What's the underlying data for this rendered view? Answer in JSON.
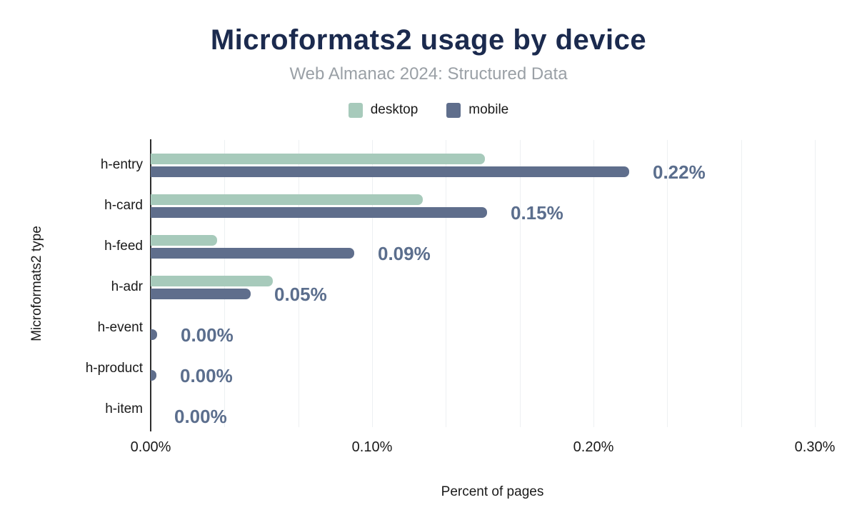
{
  "chart_data": {
    "type": "bar",
    "orientation": "horizontal",
    "title": "Microformats2 usage by device",
    "subtitle": "Web Almanac 2024: Structured Data",
    "xlabel": "Percent of pages",
    "ylabel": "Microformats2 type",
    "legend_position": "top-center",
    "grid": true,
    "categories": [
      "h-entry",
      "h-card",
      "h-feed",
      "h-adr",
      "h-event",
      "h-product",
      "h-item"
    ],
    "series": [
      {
        "name": "desktop",
        "color": "#a7cabb",
        "values": [
          0.151,
          0.123,
          0.03,
          0.055,
          0.0,
          0.0,
          0.0
        ]
      },
      {
        "name": "mobile",
        "color": "#5f6e8c",
        "values": [
          0.216,
          0.152,
          0.092,
          0.045,
          0.003,
          0.0025,
          0.0
        ]
      }
    ],
    "value_labels": [
      "0.22%",
      "0.15%",
      "0.09%",
      "0.05%",
      "0.00%",
      "0.00%",
      "0.00%"
    ],
    "value_label_series": "mobile",
    "x_ticks": [
      {
        "value": 0.0,
        "label": "0.00%"
      },
      {
        "value": 0.1,
        "label": "0.10%"
      },
      {
        "value": 0.2,
        "label": "0.20%"
      },
      {
        "value": 0.3,
        "label": "0.30%"
      }
    ],
    "xlim": [
      0,
      0.309
    ],
    "grid_step_percent": 0.033333
  },
  "colors": {
    "title": "#1b2a4e",
    "subtitle": "#9aa0a6",
    "value_label": "#5b6e8d",
    "gridline": "#edf0f2",
    "axis_line": "#2d2d2d",
    "text": "#1a1a1a",
    "background": "#ffffff"
  }
}
